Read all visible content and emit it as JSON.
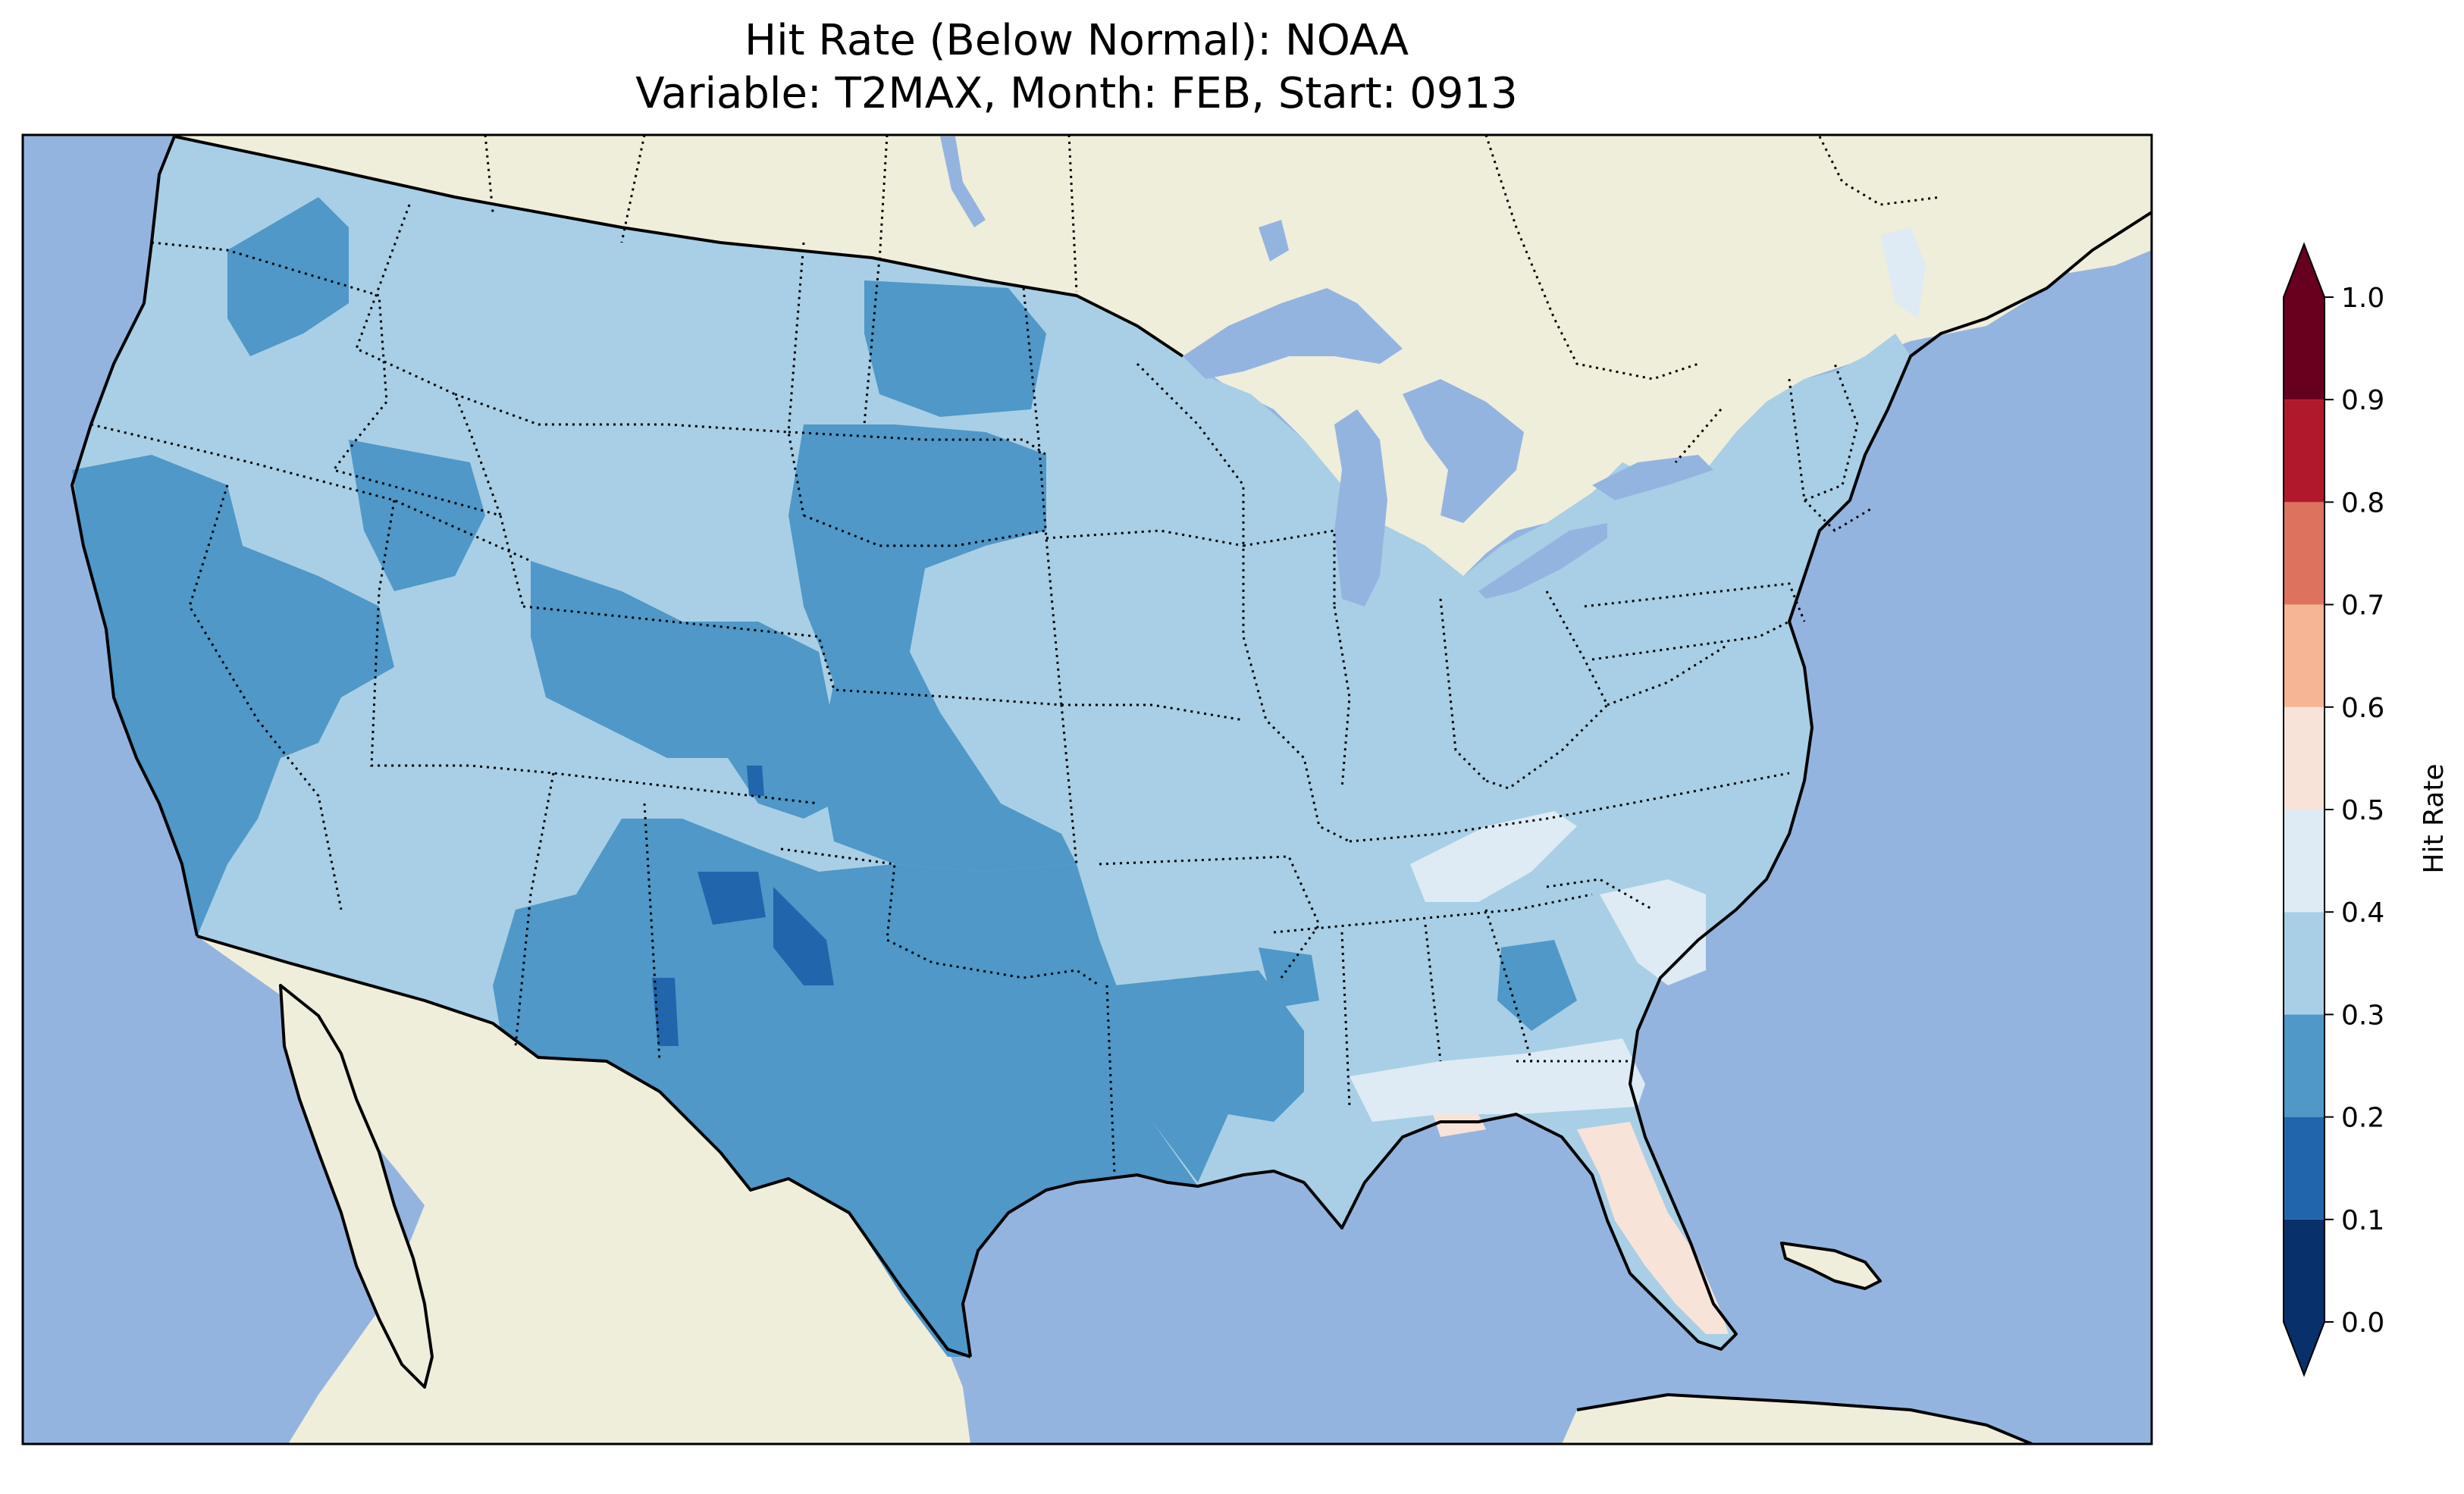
{
  "title": {
    "line1": "Hit Rate (Below Normal): NOAA",
    "line2": "Variable: T2MAX, Month: FEB, Start: 0913"
  },
  "colors": {
    "ocean": "#94b4e0",
    "land": "#efeedb",
    "lake": "#94b4e0"
  },
  "colorbar": {
    "label": "Hit Rate",
    "ticks": [
      "0.0",
      "0.1",
      "0.2",
      "0.3",
      "0.4",
      "0.5",
      "0.6",
      "0.7",
      "0.8",
      "0.9",
      "1.0"
    ],
    "bins": [
      {
        "from": 0.0,
        "to": 0.1,
        "color": "#08306b"
      },
      {
        "from": 0.1,
        "to": 0.2,
        "color": "#2166ac"
      },
      {
        "from": 0.2,
        "to": 0.3,
        "color": "#4f98c8"
      },
      {
        "from": 0.3,
        "to": 0.4,
        "color": "#a8cfe5"
      },
      {
        "from": 0.4,
        "to": 0.5,
        "color": "#deebf4"
      },
      {
        "from": 0.5,
        "to": 0.6,
        "color": "#f8e3d9"
      },
      {
        "from": 0.6,
        "to": 0.7,
        "color": "#f6b595"
      },
      {
        "from": 0.7,
        "to": 0.8,
        "color": "#dd735e"
      },
      {
        "from": 0.8,
        "to": 0.9,
        "color": "#b2182b"
      },
      {
        "from": 0.9,
        "to": 1.0,
        "color": "#67001f"
      }
    ],
    "extend_under_color": "#08306b",
    "extend_over_color": "#67001f"
  }
}
